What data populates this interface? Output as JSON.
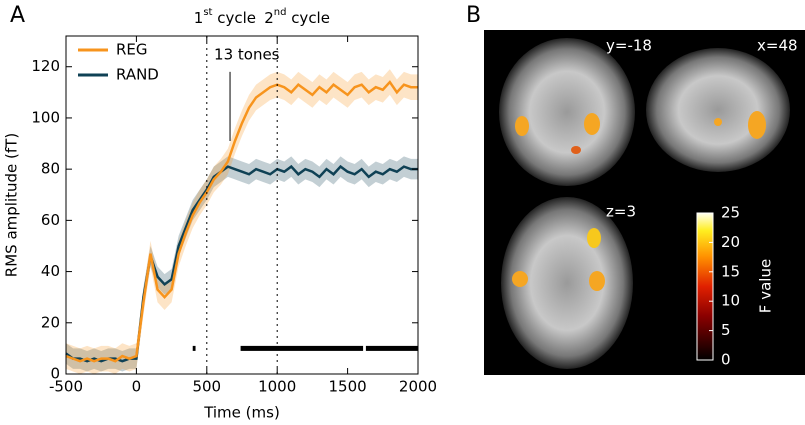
{
  "panels": {
    "a": "A",
    "b": "B"
  },
  "chart_data": {
    "type": "line",
    "xlabel": "Time (ms)",
    "ylabel": "RMS amplitude (fT)",
    "xlim": [
      -500,
      2000
    ],
    "xticks": [
      -500,
      0,
      500,
      1000,
      1500,
      2000
    ],
    "ylim": [
      0,
      132
    ],
    "yticks": [
      0,
      20,
      40,
      60,
      80,
      100,
      120
    ],
    "legend": "upper left",
    "x": [
      -500,
      -450,
      -400,
      -350,
      -300,
      -250,
      -200,
      -150,
      -100,
      -50,
      0,
      50,
      100,
      150,
      200,
      250,
      300,
      350,
      400,
      450,
      500,
      550,
      600,
      650,
      700,
      750,
      800,
      850,
      900,
      950,
      1000,
      1050,
      1100,
      1150,
      1200,
      1250,
      1300,
      1350,
      1400,
      1450,
      1500,
      1550,
      1600,
      1650,
      1700,
      1750,
      1800,
      1850,
      1900,
      1950,
      2000
    ],
    "series": [
      {
        "name": "RAND",
        "color": "#0f4155",
        "error": 4,
        "values": [
          8,
          6,
          6,
          5,
          6,
          5,
          6,
          6,
          5,
          6,
          6,
          30,
          46,
          38,
          35,
          37,
          50,
          57,
          64,
          68,
          72,
          77,
          79,
          81,
          80,
          79,
          78,
          80,
          79,
          78,
          80,
          79,
          81,
          78,
          80,
          79,
          77,
          80,
          78,
          81,
          79,
          78,
          80,
          77,
          79,
          78,
          80,
          79,
          81,
          80,
          80
        ]
      },
      {
        "name": "REG",
        "color": "#f7941d",
        "error": 5,
        "values": [
          7,
          6,
          5,
          6,
          5,
          6,
          6,
          5,
          7,
          6,
          7,
          28,
          47,
          33,
          30,
          33,
          47,
          55,
          62,
          67,
          71,
          76,
          79,
          83,
          91,
          98,
          104,
          108,
          110,
          112,
          113,
          112,
          110,
          113,
          111,
          109,
          112,
          110,
          113,
          111,
          109,
          112,
          113,
          110,
          112,
          111,
          114,
          110,
          113,
          112,
          112
        ]
      }
    ],
    "cycles": [
      {
        "x": 500,
        "num": "1",
        "sup": "st",
        "rest": " cycle"
      },
      {
        "x": 1000,
        "num": "2",
        "sup": "nd",
        "rest": " cycle"
      }
    ],
    "annotation": {
      "text": "13 tones",
      "x": 665,
      "y": [
        91,
        118
      ]
    },
    "significance": {
      "y": 10,
      "spans": [
        [
          400,
          420
        ],
        [
          740,
          1610
        ],
        [
          1630,
          2000
        ]
      ]
    }
  },
  "brain": {
    "slices": [
      "y=-18",
      "x=48",
      "z=3"
    ],
    "colorbar": {
      "label": "F value",
      "lim": [
        0,
        25
      ],
      "ticks": [
        0,
        5,
        10,
        15,
        20,
        25
      ]
    }
  }
}
